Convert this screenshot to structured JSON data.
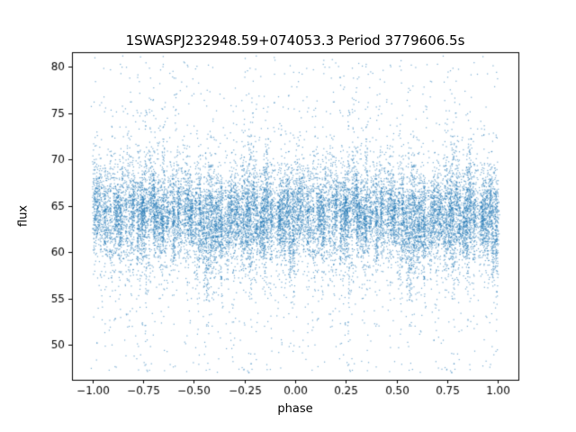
{
  "figure": {
    "background": "#ffffff"
  },
  "chart_data": {
    "type": "scatter",
    "title": "1SWASPJ232948.59+074053.3 Period 3779606.5s",
    "xlabel": "phase",
    "ylabel": "flux",
    "xlim": [
      -1.1,
      1.1
    ],
    "ylim": [
      46.2,
      81.6
    ],
    "xticks": [
      -1.0,
      -0.75,
      -0.5,
      -0.25,
      0.0,
      0.25,
      0.5,
      0.75,
      1.0
    ],
    "xtick_labels": [
      "−1.00",
      "−0.75",
      "−0.50",
      "−0.25",
      "0.00",
      "0.25",
      "0.50",
      "0.75",
      "1.00"
    ],
    "yticks": [
      50,
      55,
      60,
      65,
      70,
      75,
      80
    ],
    "ytick_labels": [
      "50",
      "55",
      "60",
      "65",
      "70",
      "75",
      "80"
    ],
    "grid": false,
    "legend": "none",
    "marker": {
      "color": "#1f77b4",
      "size": 1.2,
      "alpha": 0.6
    },
    "flux_range_observed": [
      47.0,
      80.4
    ],
    "phase_range_observed": [
      -1.0,
      1.0
    ],
    "description": "Phase-folded SuperWASP light curve; dense vertical stripes of ~1px blue points centered near flux 64, core band 60-68, sparse outliers reaching 47-80, pattern duplicated over phase -1..0 and 0..1, slight dimming dip near phase 0.6 (and -0.4)",
    "point_cloud": {
      "seed": 20230923,
      "n_stripes": 150,
      "points_per_stripe": [
        20,
        110
      ],
      "flux_mean": 64.3,
      "stripe_mean_sigma": 0.9,
      "stripe_sigma_range": [
        1.6,
        3.2
      ],
      "tail_fraction": 0.07,
      "tail_flux_range": [
        47.0,
        80.4
      ],
      "dip_phase": 0.6,
      "dip_width": 0.09,
      "dip_depth": 1.4,
      "outlier_points": 380
    }
  }
}
